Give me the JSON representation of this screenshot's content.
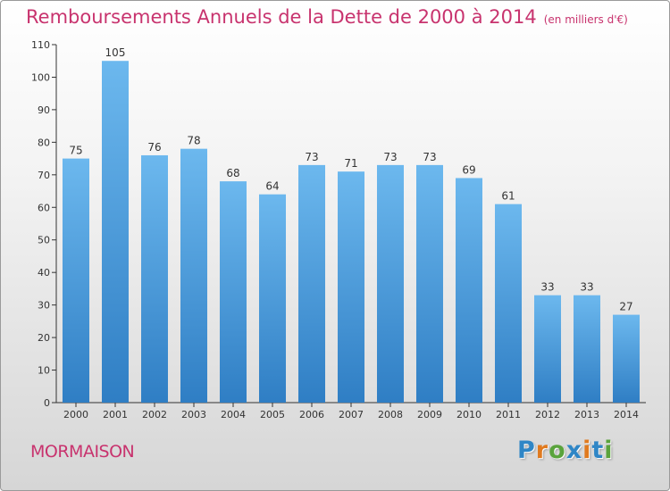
{
  "title": "Remboursements Annuels de la Dette de 2000 à 2014",
  "unit": "(en milliers d'€)",
  "commune": "MORMAISON",
  "logo": {
    "letters": [
      "P",
      "r",
      "o",
      "x",
      "i",
      "t",
      "i"
    ],
    "colors": [
      "#2f86c6",
      "#e07a1f",
      "#5aa33c",
      "#2f86c6",
      "#e07a1f",
      "#2f86c6",
      "#5aa33c"
    ]
  },
  "colors": {
    "title": "#c8336e",
    "bar_top": "#6cb8ee",
    "bar_bottom": "#2f7ec4",
    "axis": "#333333"
  },
  "chart_data": {
    "type": "bar",
    "categories": [
      "2000",
      "2001",
      "2002",
      "2003",
      "2004",
      "2005",
      "2006",
      "2007",
      "2008",
      "2009",
      "2010",
      "2011",
      "2012",
      "2013",
      "2014"
    ],
    "values": [
      75,
      105,
      76,
      78,
      68,
      64,
      73,
      71,
      73,
      73,
      69,
      61,
      33,
      33,
      27
    ],
    "data_labels": [
      "75",
      "105",
      "76",
      "78",
      "68",
      "64",
      "73",
      "71",
      "73",
      "73",
      "69",
      "61",
      "33",
      "33",
      "27"
    ],
    "yticks": [
      0,
      10,
      20,
      30,
      40,
      50,
      60,
      70,
      80,
      90,
      100,
      110
    ],
    "ylim": [
      0,
      110
    ],
    "title": "Remboursements Annuels de la Dette de 2000 à 2014",
    "xlabel": "",
    "ylabel": "",
    "grid": false,
    "legend": false
  }
}
